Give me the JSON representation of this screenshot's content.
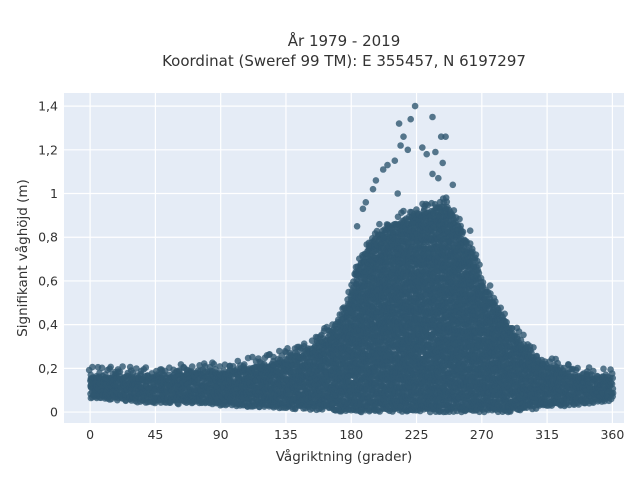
{
  "chart_data": {
    "type": "scatter",
    "title": "År 1979 - 2019",
    "subtitle": "Koordinat (Sweref 99 TM): E 355457, N 6197297",
    "xlabel": "Vågriktning (grader)",
    "ylabel": "Signifikant våghöjd (m)",
    "xlim": [
      -18,
      368
    ],
    "ylim": [
      -0.05,
      1.46
    ],
    "x_ticks": [
      0,
      45,
      90,
      135,
      180,
      225,
      270,
      315,
      360
    ],
    "x_tick_labels": [
      "0",
      "45",
      "90",
      "135",
      "180",
      "225",
      "270",
      "315",
      "360"
    ],
    "y_ticks": [
      0,
      0.2,
      0.4,
      0.6,
      0.8,
      1.0,
      1.2,
      1.4
    ],
    "y_tick_labels": [
      "0",
      "0,2",
      "0,4",
      "0,6",
      "0,8",
      "1",
      "1,2",
      "1,4"
    ],
    "grid": true,
    "legend": "none",
    "marker_color": "#2f5870",
    "background_color": "#e5ecf6",
    "series": [
      {
        "envelope": {
          "x": [
            0,
            20,
            45,
            90,
            120,
            150,
            165,
            175,
            180,
            185,
            195,
            205,
            215,
            225,
            235,
            245,
            255,
            260,
            270,
            280,
            290,
            300,
            315,
            330,
            345,
            360
          ],
          "y_min": [
            0.06,
            0.05,
            0.04,
            0.03,
            0.02,
            0.01,
            0.01,
            0.0,
            0.0,
            0.0,
            0.0,
            0.0,
            0.0,
            0.0,
            0.0,
            0.0,
            0.0,
            0.0,
            0.0,
            0.0,
            0.0,
            0.01,
            0.02,
            0.03,
            0.04,
            0.05
          ],
          "y_max": [
            0.17,
            0.17,
            0.17,
            0.19,
            0.22,
            0.28,
            0.36,
            0.45,
            0.55,
            0.68,
            0.8,
            0.84,
            0.88,
            0.92,
            0.92,
            0.95,
            0.85,
            0.78,
            0.6,
            0.48,
            0.38,
            0.3,
            0.22,
            0.18,
            0.17,
            0.16
          ]
        },
        "outliers": [
          {
            "x": 224,
            "y": 1.4
          },
          {
            "x": 213,
            "y": 1.32
          },
          {
            "x": 221,
            "y": 1.34
          },
          {
            "x": 236,
            "y": 1.35
          },
          {
            "x": 242,
            "y": 1.26
          },
          {
            "x": 245,
            "y": 1.26
          },
          {
            "x": 216,
            "y": 1.26
          },
          {
            "x": 214,
            "y": 1.22
          },
          {
            "x": 219,
            "y": 1.2
          },
          {
            "x": 229,
            "y": 1.21
          },
          {
            "x": 232,
            "y": 1.18
          },
          {
            "x": 238,
            "y": 1.19
          },
          {
            "x": 243,
            "y": 1.14
          },
          {
            "x": 202,
            "y": 1.11
          },
          {
            "x": 205,
            "y": 1.13
          },
          {
            "x": 210,
            "y": 1.15
          },
          {
            "x": 236,
            "y": 1.09
          },
          {
            "x": 240,
            "y": 1.07
          },
          {
            "x": 195,
            "y": 1.02
          },
          {
            "x": 197,
            "y": 1.06
          },
          {
            "x": 250,
            "y": 1.04
          },
          {
            "x": 184,
            "y": 0.85
          },
          {
            "x": 188,
            "y": 0.93
          },
          {
            "x": 190,
            "y": 0.96
          },
          {
            "x": 212,
            "y": 1.0
          },
          {
            "x": 262,
            "y": 0.83
          },
          {
            "x": 266,
            "y": 0.72
          }
        ]
      }
    ]
  }
}
